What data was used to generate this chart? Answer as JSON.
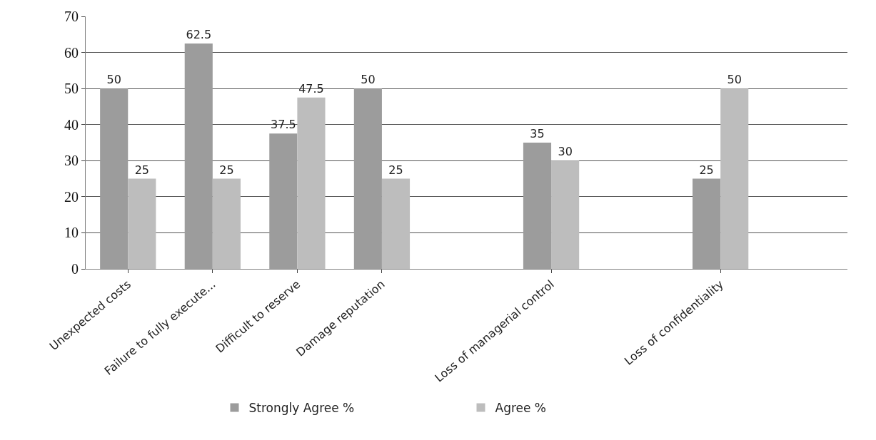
{
  "chart_data": {
    "type": "bar",
    "categories": [
      "Unexpected costs",
      "Failure to fully execute...",
      "Difficult to reserve",
      "Damage reputation",
      null,
      "Loss of managerial control",
      null,
      "Loss of confidentiality",
      null
    ],
    "series": [
      {
        "name": "Strongly Agree %",
        "color": "#9c9c9c",
        "values": [
          50,
          62.5,
          37.5,
          50,
          null,
          35,
          null,
          25,
          null
        ]
      },
      {
        "name": "Agree %",
        "color": "#bdbdbd",
        "values": [
          25,
          25,
          47.5,
          25,
          null,
          30,
          null,
          50,
          null
        ]
      }
    ],
    "ylim": [
      0,
      70
    ],
    "yticks": [
      0,
      10,
      20,
      30,
      40,
      50,
      60,
      70
    ],
    "grid": "y",
    "legend": "bottom",
    "data_labels": true
  }
}
